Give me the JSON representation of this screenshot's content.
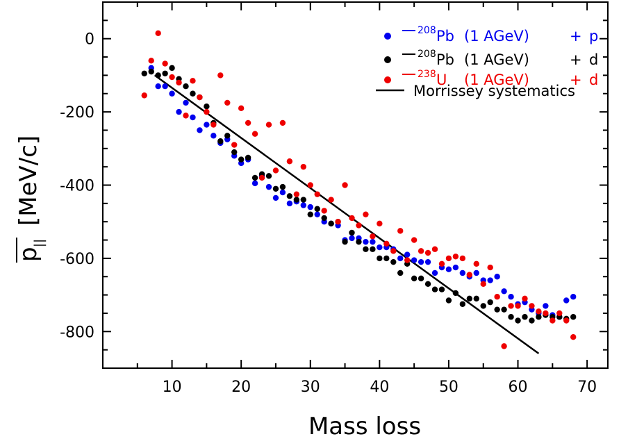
{
  "chart_data": {
    "type": "scatter",
    "title": "",
    "xlabel": "Mass loss",
    "ylabel": "[MeV/c]",
    "ylabel_symbol": "p",
    "ylabel_subscript": "||",
    "xlim": [
      0,
      73
    ],
    "ylim": [
      -900,
      100
    ],
    "xticks": [
      10,
      20,
      30,
      40,
      50,
      60,
      70
    ],
    "yticks": [
      0,
      -200,
      -400,
      -600,
      -800
    ],
    "grid": false,
    "legend_position": "top-right",
    "legend": [
      {
        "mass": "208",
        "element": "Pb",
        "energy": "(1 AGeV)",
        "plus": "+",
        "target": "p",
        "color": "#0000ee"
      },
      {
        "mass": "208",
        "element": "Pb",
        "energy": "(1 AGeV)",
        "plus": "+",
        "target": "d",
        "color": "#000000"
      },
      {
        "mass": "238",
        "element": "U",
        "energy": "(1 AGeV)",
        "plus": "+",
        "target": "d",
        "color": "#ee0000"
      },
      {
        "label": "Morrissey systematics",
        "color": "#000000"
      }
    ],
    "series": [
      {
        "color": "#0000ee",
        "points": [
          [
            7,
            -80
          ],
          [
            8,
            -130
          ],
          [
            9,
            -130
          ],
          [
            10,
            -150
          ],
          [
            11,
            -200
          ],
          [
            12,
            -175
          ],
          [
            13,
            -215
          ],
          [
            14,
            -250
          ],
          [
            15,
            -235
          ],
          [
            16,
            -265
          ],
          [
            17,
            -285
          ],
          [
            18,
            -275
          ],
          [
            19,
            -320
          ],
          [
            20,
            -340
          ],
          [
            21,
            -330
          ],
          [
            22,
            -395
          ],
          [
            23,
            -375
          ],
          [
            24,
            -405
          ],
          [
            25,
            -435
          ],
          [
            26,
            -420
          ],
          [
            27,
            -450
          ],
          [
            28,
            -445
          ],
          [
            29,
            -455
          ],
          [
            30,
            -460
          ],
          [
            31,
            -480
          ],
          [
            32,
            -500
          ],
          [
            33,
            -505
          ],
          [
            34,
            -510
          ],
          [
            35,
            -550
          ],
          [
            36,
            -545
          ],
          [
            37,
            -545
          ],
          [
            38,
            -555
          ],
          [
            39,
            -555
          ],
          [
            40,
            -570
          ],
          [
            41,
            -570
          ],
          [
            42,
            -575
          ],
          [
            43,
            -600
          ],
          [
            44,
            -590
          ],
          [
            45,
            -605
          ],
          [
            46,
            -610
          ],
          [
            47,
            -610
          ],
          [
            48,
            -640
          ],
          [
            49,
            -625
          ],
          [
            50,
            -630
          ],
          [
            51,
            -625
          ],
          [
            52,
            -640
          ],
          [
            53,
            -650
          ],
          [
            54,
            -640
          ],
          [
            55,
            -660
          ],
          [
            56,
            -660
          ],
          [
            57,
            -650
          ],
          [
            58,
            -690
          ],
          [
            59,
            -705
          ],
          [
            60,
            -725
          ],
          [
            61,
            -720
          ],
          [
            62,
            -740
          ],
          [
            63,
            -750
          ],
          [
            64,
            -730
          ],
          [
            65,
            -755
          ],
          [
            66,
            -760
          ],
          [
            67,
            -715
          ],
          [
            68,
            -705
          ]
        ]
      },
      {
        "color": "#000000",
        "points": [
          [
            6,
            -95
          ],
          [
            7,
            -90
          ],
          [
            8,
            -100
          ],
          [
            9,
            -95
          ],
          [
            10,
            -80
          ],
          [
            11,
            -110
          ],
          [
            12,
            -130
          ],
          [
            13,
            -150
          ],
          [
            14,
            -160
          ],
          [
            15,
            -185
          ],
          [
            16,
            -230
          ],
          [
            17,
            -280
          ],
          [
            18,
            -265
          ],
          [
            19,
            -310
          ],
          [
            20,
            -330
          ],
          [
            21,
            -325
          ],
          [
            22,
            -380
          ],
          [
            23,
            -370
          ],
          [
            24,
            -375
          ],
          [
            25,
            -410
          ],
          [
            26,
            -405
          ],
          [
            27,
            -430
          ],
          [
            28,
            -440
          ],
          [
            29,
            -440
          ],
          [
            30,
            -480
          ],
          [
            31,
            -465
          ],
          [
            32,
            -490
          ],
          [
            33,
            -505
          ],
          [
            34,
            -500
          ],
          [
            35,
            -555
          ],
          [
            36,
            -530
          ],
          [
            37,
            -555
          ],
          [
            38,
            -575
          ],
          [
            39,
            -575
          ],
          [
            40,
            -600
          ],
          [
            41,
            -600
          ],
          [
            42,
            -610
          ],
          [
            43,
            -640
          ],
          [
            44,
            -615
          ],
          [
            45,
            -655
          ],
          [
            46,
            -655
          ],
          [
            47,
            -670
          ],
          [
            48,
            -685
          ],
          [
            49,
            -685
          ],
          [
            50,
            -715
          ],
          [
            51,
            -695
          ],
          [
            52,
            -725
          ],
          [
            53,
            -710
          ],
          [
            54,
            -710
          ],
          [
            55,
            -730
          ],
          [
            56,
            -720
          ],
          [
            57,
            -740
          ],
          [
            58,
            -740
          ],
          [
            59,
            -760
          ],
          [
            60,
            -770
          ],
          [
            61,
            -760
          ],
          [
            62,
            -770
          ],
          [
            63,
            -760
          ],
          [
            64,
            -755
          ],
          [
            65,
            -760
          ],
          [
            66,
            -760
          ],
          [
            67,
            -765
          ],
          [
            68,
            -760
          ]
        ]
      },
      {
        "color": "#ee0000",
        "points": [
          [
            6,
            -155
          ],
          [
            7,
            -60
          ],
          [
            8,
            15
          ],
          [
            9,
            -68
          ],
          [
            10,
            -105
          ],
          [
            11,
            -120
          ],
          [
            12,
            -210
          ],
          [
            13,
            -115
          ],
          [
            14,
            -160
          ],
          [
            15,
            -200
          ],
          [
            16,
            -235
          ],
          [
            17,
            -100
          ],
          [
            18,
            -175
          ],
          [
            19,
            -290
          ],
          [
            20,
            -190
          ],
          [
            21,
            -230
          ],
          [
            22,
            -260
          ],
          [
            23,
            -380
          ],
          [
            24,
            -235
          ],
          [
            25,
            -360
          ],
          [
            26,
            -230
          ],
          [
            27,
            -335
          ],
          [
            28,
            -425
          ],
          [
            29,
            -350
          ],
          [
            30,
            -400
          ],
          [
            31,
            -425
          ],
          [
            32,
            -470
          ],
          [
            33,
            -440
          ],
          [
            34,
            -500
          ],
          [
            35,
            -400
          ],
          [
            36,
            -490
          ],
          [
            37,
            -510
          ],
          [
            38,
            -480
          ],
          [
            39,
            -540
          ],
          [
            40,
            -505
          ],
          [
            41,
            -560
          ],
          [
            42,
            -580
          ],
          [
            43,
            -525
          ],
          [
            44,
            -605
          ],
          [
            45,
            -550
          ],
          [
            46,
            -580
          ],
          [
            47,
            -585
          ],
          [
            48,
            -575
          ],
          [
            49,
            -615
          ],
          [
            50,
            -600
          ],
          [
            51,
            -595
          ],
          [
            52,
            -600
          ],
          [
            53,
            -645
          ],
          [
            54,
            -615
          ],
          [
            55,
            -670
          ],
          [
            56,
            -625
          ],
          [
            57,
            -705
          ],
          [
            58,
            -840
          ],
          [
            59,
            -730
          ],
          [
            60,
            -730
          ],
          [
            61,
            -710
          ],
          [
            62,
            -730
          ],
          [
            63,
            -745
          ],
          [
            64,
            -750
          ],
          [
            65,
            -770
          ],
          [
            66,
            -750
          ],
          [
            67,
            -770
          ],
          [
            68,
            -815
          ]
        ]
      },
      {
        "type": "line",
        "color": "#000000",
        "points": [
          [
            7.5,
            -100
          ],
          [
            63,
            -860
          ]
        ]
      }
    ]
  }
}
